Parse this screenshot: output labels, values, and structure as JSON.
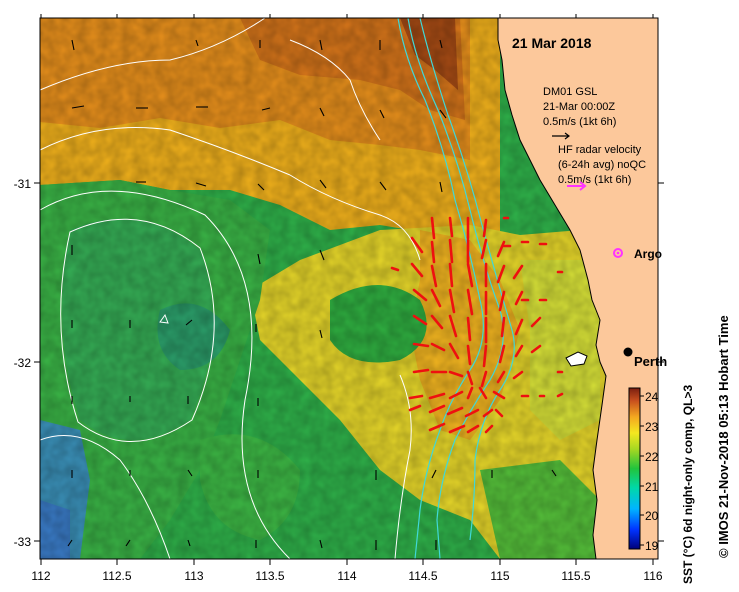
{
  "map": {
    "date_label": "21 Mar 2018",
    "legend_gsl": [
      "DM01 GSL",
      "21-Mar 00:00Z",
      "0.5m/s (1kt 6h)"
    ],
    "legend_hf": [
      "HF radar velocity",
      "(6-24h avg) noQC",
      "0.5m/s (1kt 6h)"
    ],
    "places": [
      {
        "name": "Argo",
        "lon": 115.68,
        "lat": -31.42
      },
      {
        "name": "Perth",
        "lon": 115.86,
        "lat": -31.96
      }
    ],
    "x_ticks": [
      "112",
      "112.5",
      "113",
      "113.5",
      "114",
      "114.5",
      "115",
      "115.5",
      "116"
    ],
    "y_ticks": [
      "-31",
      "-32",
      "-33"
    ],
    "colorbar_label": "SST (°C) 6d night-only comp, QL>3",
    "colorbar_ticks": [
      "19",
      "20",
      "21",
      "22",
      "23",
      "24"
    ],
    "credit": "© IMOS 21-Nov-2018 05:13 Hobart Time"
  },
  "colors": {
    "land": "#fcc89b",
    "coast": "#000000",
    "hf_vector": "#ee1010",
    "gsl_vector": "#000000",
    "argo": "#ff33ff",
    "bathy": "#40d8d8",
    "contour": "#ffffff"
  }
}
